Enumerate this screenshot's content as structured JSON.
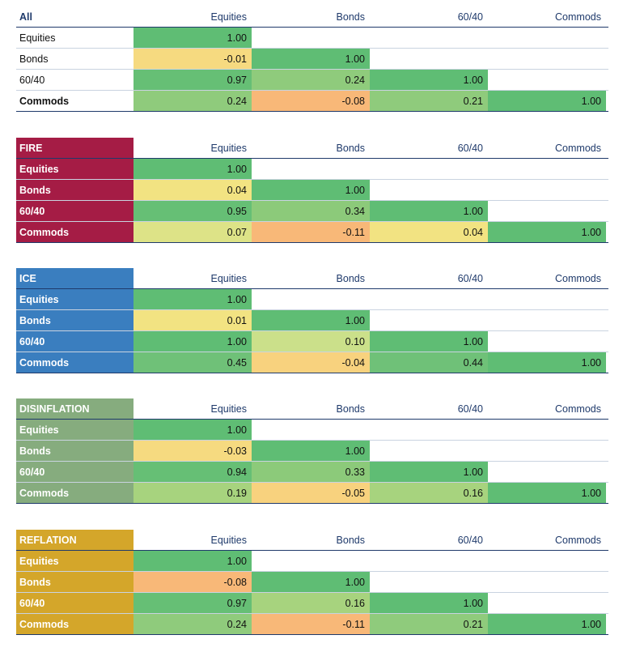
{
  "columns": [
    "Equities",
    "Bonds",
    "60/40",
    "Commods"
  ],
  "colors": {
    "header_text": "#1f3a6b",
    "scale": {
      "1.00": "#5cbb72",
      "high": "#6dc076",
      "mid": "#a9d47c",
      "low_pos": "#cbe08a",
      "near_zero": "#f0e27f",
      "neg": "#f7bf7a"
    }
  },
  "chart_data": [
    {
      "type": "table",
      "title": "All",
      "label_color": null,
      "rows": [
        "Equities",
        "Bonds",
        "60/40",
        "Commods"
      ],
      "values": [
        [
          1.0
        ],
        [
          -0.01,
          1.0
        ],
        [
          0.97,
          0.24,
          1.0
        ],
        [
          0.24,
          -0.08,
          0.21,
          1.0
        ]
      ],
      "display": [
        [
          "1.00"
        ],
        [
          "-0.01",
          "1.00"
        ],
        [
          "0.97",
          "0.24",
          "1.00"
        ],
        [
          "0.24",
          "-0.08",
          "0.21",
          "1.00"
        ]
      ]
    },
    {
      "type": "table",
      "title": "FIRE",
      "label_color": "#a51c45",
      "rows": [
        "Equities",
        "Bonds",
        "60/40",
        "Commods"
      ],
      "values": [
        [
          1.0
        ],
        [
          0.04,
          1.0
        ],
        [
          0.95,
          0.34,
          1.0
        ],
        [
          0.07,
          -0.11,
          0.04,
          1.0
        ]
      ],
      "display": [
        [
          "1.00"
        ],
        [
          "0.04",
          "1.00"
        ],
        [
          "0.95",
          "0.34",
          "1.00"
        ],
        [
          "0.07",
          "-0.11",
          "0.04",
          "1.00"
        ]
      ]
    },
    {
      "type": "table",
      "title": "ICE",
      "label_color": "#3a7ebf",
      "rows": [
        "Equities",
        "Bonds",
        "60/40",
        "Commods"
      ],
      "values": [
        [
          1.0
        ],
        [
          0.01,
          1.0
        ],
        [
          1.0,
          0.1,
          1.0
        ],
        [
          0.45,
          -0.04,
          0.44,
          1.0
        ]
      ],
      "display": [
        [
          "1.00"
        ],
        [
          "0.01",
          "1.00"
        ],
        [
          "1.00",
          "0.10",
          "1.00"
        ],
        [
          "0.45",
          "-0.04",
          "0.44",
          "1.00"
        ]
      ]
    },
    {
      "type": "table",
      "title": "DISINFLATION",
      "label_color": "#86ac7e",
      "rows": [
        "Equities",
        "Bonds",
        "60/40",
        "Commods"
      ],
      "values": [
        [
          1.0
        ],
        [
          -0.03,
          1.0
        ],
        [
          0.94,
          0.33,
          1.0
        ],
        [
          0.19,
          -0.05,
          0.16,
          1.0
        ]
      ],
      "display": [
        [
          "1.00"
        ],
        [
          "-0.03",
          "1.00"
        ],
        [
          "0.94",
          "0.33",
          "1.00"
        ],
        [
          "0.19",
          "-0.05",
          "0.16",
          "1.00"
        ]
      ]
    },
    {
      "type": "table",
      "title": "REFLATION",
      "label_color": "#d4a62a",
      "rows": [
        "Equities",
        "Bonds",
        "60/40",
        "Commods"
      ],
      "values": [
        [
          1.0
        ],
        [
          -0.08,
          1.0
        ],
        [
          0.97,
          0.16,
          1.0
        ],
        [
          0.24,
          -0.11,
          0.21,
          1.0
        ]
      ],
      "display": [
        [
          "1.00"
        ],
        [
          "-0.08",
          "1.00"
        ],
        [
          "0.97",
          "0.16",
          "1.00"
        ],
        [
          "0.24",
          "-0.11",
          "0.21",
          "1.00"
        ]
      ]
    }
  ]
}
